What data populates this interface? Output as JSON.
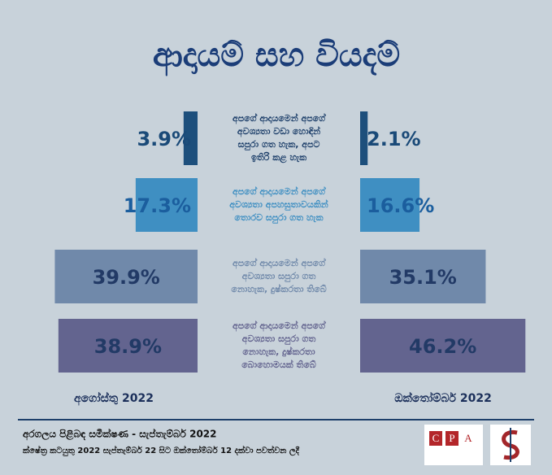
{
  "chart_data": {
    "type": "butterfly",
    "title": "ආදායම් සහ වියදම්",
    "categories": [
      "අපගේ ආදායමෙන් අපගේ අවශ්‍යතා වඩා හොඳින් සපුරා ගත හැක, අපට ඉතිරි කළ හැක",
      "අපගේ ආදායමෙන් අපගේ අවශ්‍යතා අපහසුතාවයකින් තොරව සපුරා ගත හැක",
      "අපගේ ආදායමෙන් අපගේ අවශ්‍යතා සපුරා ගත නොහැක, දුෂ්කරතා තිබේ",
      "අපගේ ආදායමෙන් අපගේ අවශ්‍යතා සපුරා ගත නොහැක, දුෂ්කරතා බොහොමයක් තිබේ"
    ],
    "colors": [
      "#1d4f7c",
      "#3f8fc2",
      "#7089aa",
      "#63648f"
    ],
    "series": [
      {
        "name": "අගෝස්තු 2022",
        "values": [
          3.9,
          17.3,
          39.9,
          38.9
        ],
        "value_labels": [
          "3.9%",
          "17.3%",
          "39.9%",
          "38.9%"
        ]
      },
      {
        "name": "ඔක්තෝම්බර් 2022",
        "values": [
          2.1,
          16.6,
          35.1,
          46.2
        ],
        "value_labels": [
          "2.1%",
          "16.6%",
          "35.1%",
          "46.2%"
        ]
      }
    ],
    "footer": [
      "අරගලය පිළිබඳ සමීක්ෂණ - සැප්තැම්බර් 2022",
      "ක්ෂේත්‍ර කටයුතු 2022 සැප්තැම්බර් 22 සිට ඔක්තෝම්බර් 12 දක්වා පවත්වන ලදී"
    ],
    "logo_letters": [
      "C",
      "P",
      "A"
    ]
  }
}
